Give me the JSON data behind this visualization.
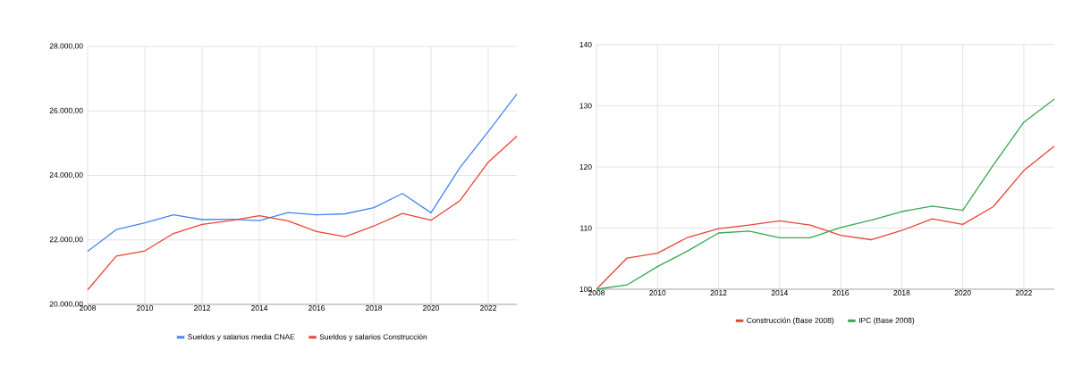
{
  "chart_data": [
    {
      "type": "line",
      "x": [
        2008,
        2009,
        2010,
        2011,
        2012,
        2013,
        2014,
        2015,
        2016,
        2017,
        2018,
        2019,
        2020,
        2021,
        2022,
        2023
      ],
      "xlim": [
        2008,
        2023
      ],
      "xticks": [
        2008,
        2010,
        2012,
        2014,
        2016,
        2018,
        2020,
        2022
      ],
      "ylim": [
        20000,
        28000
      ],
      "yticks": [
        {
          "value": 20000,
          "label": "20.000,00"
        },
        {
          "value": 22000,
          "label": "22.000,00"
        },
        {
          "value": 24000,
          "label": "24.000,00"
        },
        {
          "value": 26000,
          "label": "26.000,00"
        },
        {
          "value": 28000,
          "label": "28.000,00"
        }
      ],
      "grid": true,
      "legend": "bottom",
      "marker": "none",
      "line_style": "solid",
      "series": [
        {
          "name": "Sueldos y salarios media CNAE",
          "color": "#4285f4",
          "values": [
            21650,
            22320,
            22530,
            22780,
            22630,
            22640,
            22600,
            22850,
            22780,
            22810,
            23000,
            23440,
            22840,
            24230,
            25360,
            26520
          ]
        },
        {
          "name": "Sueldos y salarios Construcción",
          "color": "#ea4335",
          "values": [
            20450,
            21500,
            21660,
            22200,
            22480,
            22600,
            22750,
            22590,
            22260,
            22100,
            22430,
            22820,
            22610,
            23210,
            24410,
            25220
          ]
        }
      ]
    },
    {
      "type": "line",
      "x": [
        2008,
        2009,
        2010,
        2011,
        2012,
        2013,
        2014,
        2015,
        2016,
        2017,
        2018,
        2019,
        2020,
        2021,
        2022,
        2023
      ],
      "xlim": [
        2008,
        2023
      ],
      "xticks": [
        2008,
        2010,
        2012,
        2014,
        2016,
        2018,
        2020,
        2022
      ],
      "ylim": [
        100,
        140
      ],
      "yticks": [
        100,
        110,
        120,
        130,
        140
      ],
      "grid": true,
      "legend": "bottom",
      "marker": "none",
      "line_style": "solid",
      "series": [
        {
          "name": "Construcción (Base 2008)",
          "color": "#ea4335",
          "values": [
            100,
            105.1,
            105.9,
            108.5,
            109.9,
            110.5,
            111.2,
            110.5,
            108.8,
            108.1,
            109.6,
            111.5,
            110.6,
            113.5,
            119.4,
            123.4
          ]
        },
        {
          "name": "IPC (Base 2008)",
          "color": "#34a853",
          "values": [
            100,
            100.7,
            103.7,
            106.3,
            109.2,
            109.5,
            108.4,
            108.4,
            110.1,
            111.3,
            112.7,
            113.6,
            112.9,
            120.3,
            127.3,
            131.1
          ]
        }
      ]
    }
  ]
}
